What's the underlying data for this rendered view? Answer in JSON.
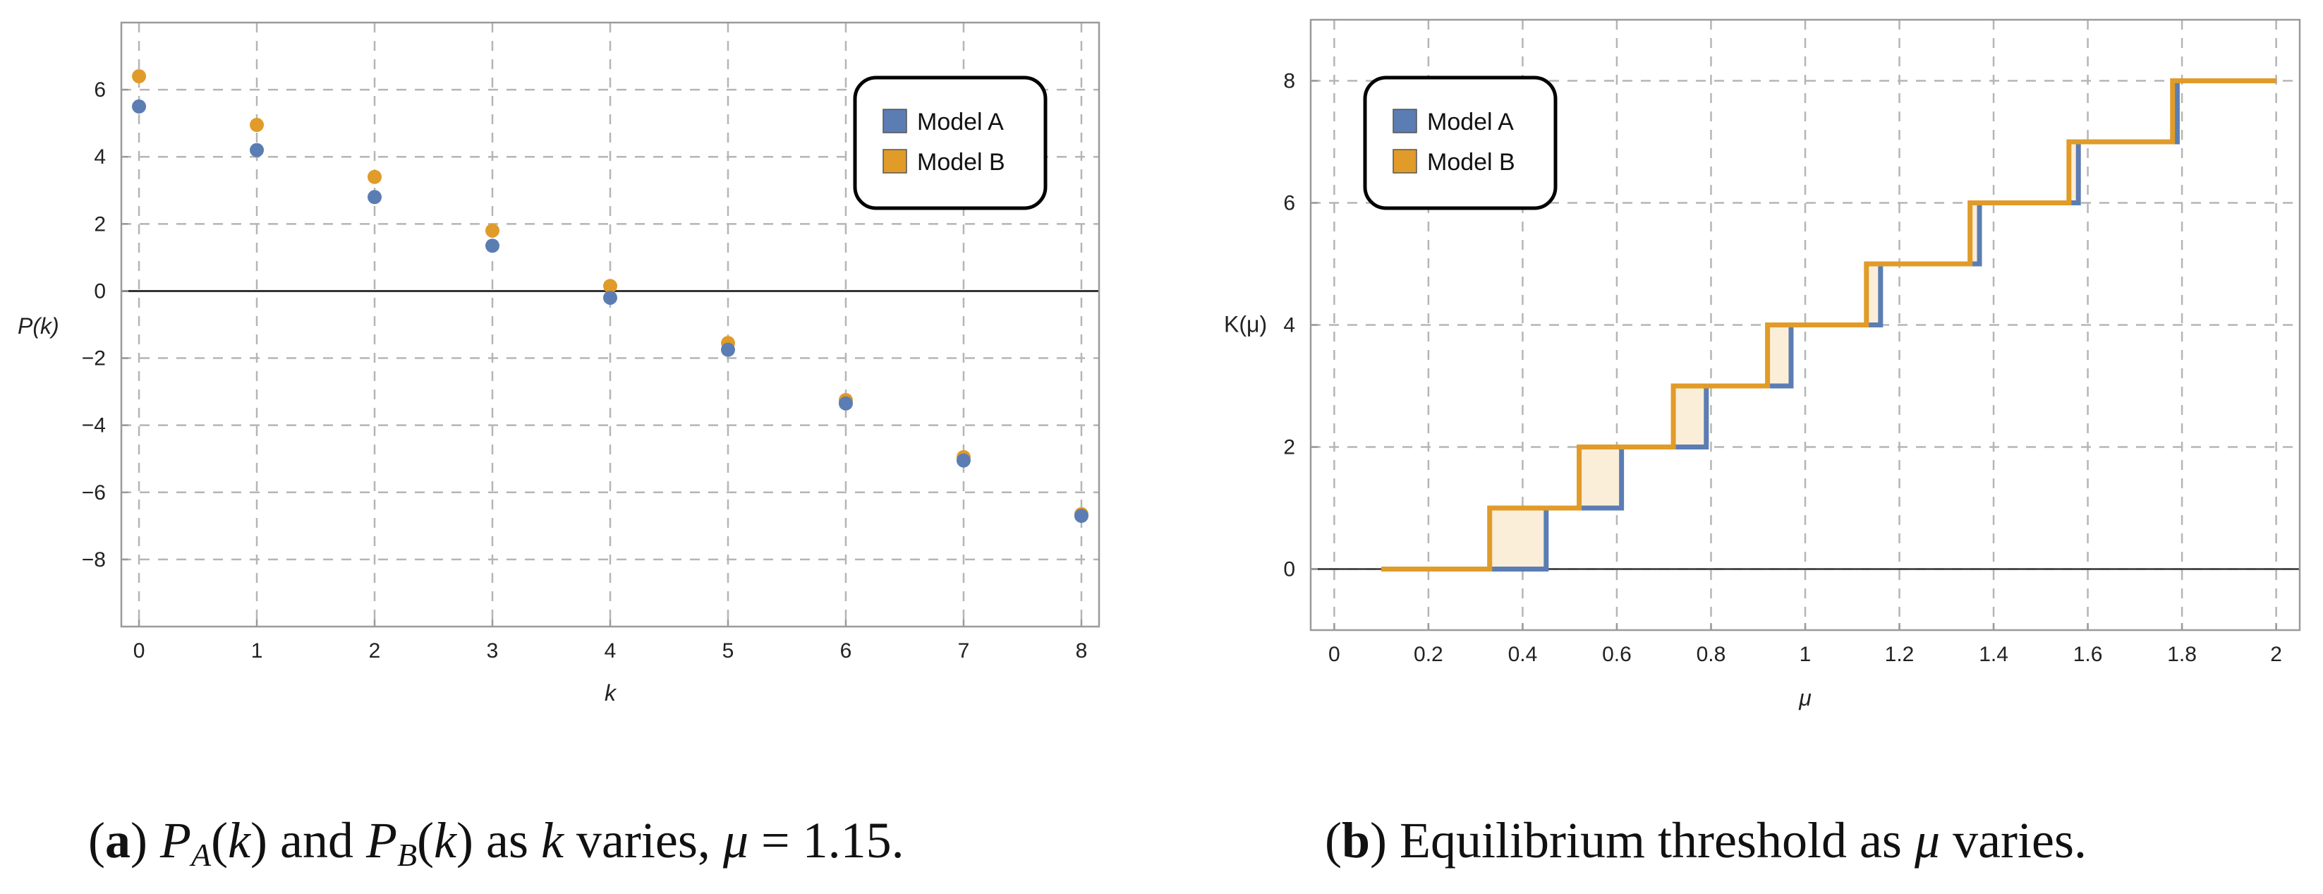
{
  "chart_data": [
    {
      "type": "scatter",
      "title": "",
      "xlabel": "k",
      "ylabel": "P(k)",
      "xlim": [
        -0.15,
        8.15
      ],
      "ylim": [
        -10,
        8
      ],
      "xticks": [
        0,
        1,
        2,
        3,
        4,
        5,
        6,
        7,
        8
      ],
      "yticks": [
        -8,
        -6,
        -4,
        -2,
        0,
        2,
        4,
        6
      ],
      "ytick_labels": [
        "−8",
        "−6",
        "−4",
        "−2",
        "0",
        "2",
        "4",
        "6"
      ],
      "grid": true,
      "legend_position": "top-right",
      "series": [
        {
          "name": "Model A",
          "color": "#5b7db3",
          "x": [
            0,
            1,
            2,
            3,
            4,
            5,
            6,
            7,
            8
          ],
          "values": [
            5.5,
            4.2,
            2.8,
            1.35,
            -0.2,
            -1.75,
            -3.35,
            -5.05,
            -6.7
          ]
        },
        {
          "name": "Model B",
          "color": "#e09b28",
          "x": [
            0,
            1,
            2,
            3,
            4,
            5,
            6,
            7,
            8
          ],
          "values": [
            6.4,
            4.95,
            3.4,
            1.8,
            0.15,
            -1.55,
            -3.25,
            -4.95,
            -6.65
          ]
        }
      ]
    },
    {
      "type": "line",
      "title": "",
      "xlabel": "μ",
      "ylabel": "K(μ)",
      "xlim": [
        -0.05,
        2.05
      ],
      "ylim": [
        -1,
        9
      ],
      "xticks": [
        0,
        0.2,
        0.4,
        0.6,
        0.8,
        1,
        1.2,
        1.4,
        1.6,
        1.8,
        2
      ],
      "xtick_labels": [
        "0",
        "0.2",
        "0.4",
        "0.6",
        "0.8",
        "1",
        "1.2",
        "1.4",
        "1.6",
        "1.8",
        "2"
      ],
      "yticks": [
        0,
        2,
        4,
        6,
        8
      ],
      "grid": true,
      "legend_position": "top-left",
      "series": [
        {
          "name": "Model A",
          "color": "#5b7db3",
          "x_start": 0.1,
          "thresholds": [
            0.45,
            0.61,
            0.79,
            0.97,
            1.16,
            1.37,
            1.58,
            1.79
          ],
          "x_end": 2.0
        },
        {
          "name": "Model B",
          "color": "#e09b28",
          "x_start": 0.1,
          "thresholds": [
            0.33,
            0.52,
            0.72,
            0.92,
            1.13,
            1.35,
            1.56,
            1.78
          ],
          "x_end": 2.0
        }
      ],
      "fill_between_color": "#fbeed9"
    }
  ],
  "captions": {
    "a": {
      "label": "a",
      "text_1": " and ",
      "text_2": " as ",
      "text_3": " varies, ",
      "eq": " = 1.15."
    },
    "b": {
      "label": "b",
      "text": " Equilibrium threshold as ",
      "text_end": " varies."
    }
  }
}
